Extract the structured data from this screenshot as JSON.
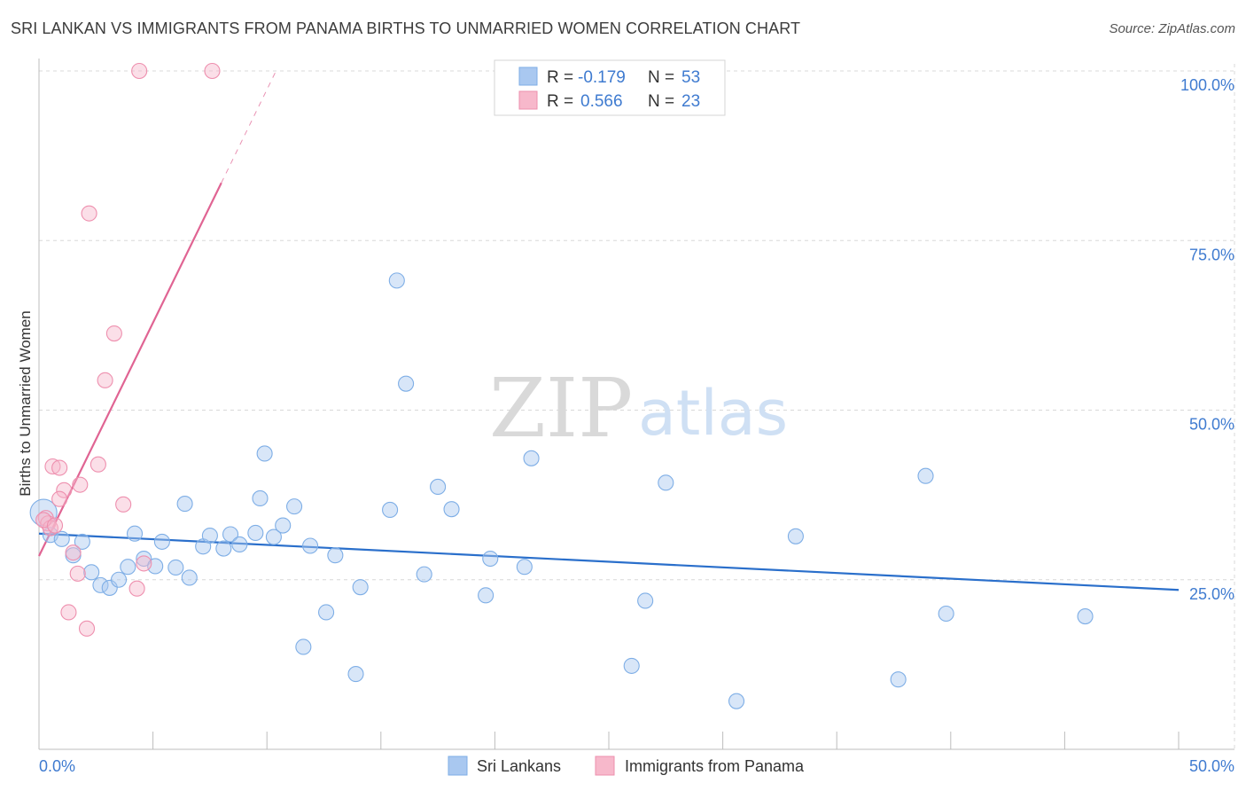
{
  "title": "SRI LANKAN VS IMMIGRANTS FROM PANAMA BIRTHS TO UNMARRIED WOMEN CORRELATION CHART",
  "source": "Source: ZipAtlas.com",
  "watermark": {
    "zip": "ZIP",
    "atlas": "atlas"
  },
  "legend": {
    "r_label": "R =",
    "n_label": "N =",
    "rows": [
      {
        "r": "-0.179",
        "n": "53",
        "color": "#a9c8f0"
      },
      {
        "r": "0.566",
        "n": "23",
        "color": "#f7b8cb"
      }
    ]
  },
  "chart_data": {
    "type": "scatter",
    "title": "SRI LANKAN VS IMMIGRANTS FROM PANAMA BIRTHS TO UNMARRIED WOMEN CORRELATION CHART",
    "xlabel": "",
    "ylabel": "Births to Unmarried Women",
    "xlim": [
      0,
      50
    ],
    "ylim": [
      0,
      105
    ],
    "x_tick_labels": [
      "0.0%",
      "50.0%"
    ],
    "y_ticks": [
      {
        "value": 25,
        "label": "25.0%"
      },
      {
        "value": 50,
        "label": "50.0%"
      },
      {
        "value": 75,
        "label": "75.0%"
      },
      {
        "value": 100,
        "label": "100.0%"
      }
    ],
    "series": [
      {
        "name": "Sri Lankans",
        "color": "#a9c8f0",
        "stroke": "#7eaee6",
        "line_color": "#2a6fcb",
        "trend": {
          "x0": 0,
          "y0": 31.8,
          "x1": 50,
          "y1": 23.5
        },
        "points": [
          {
            "x": 0.2,
            "y": 34.9,
            "big": true
          },
          {
            "x": 0.5,
            "y": 31.6
          },
          {
            "x": 1.0,
            "y": 31.0
          },
          {
            "x": 1.9,
            "y": 30.6
          },
          {
            "x": 1.5,
            "y": 28.6
          },
          {
            "x": 2.3,
            "y": 26.1
          },
          {
            "x": 2.7,
            "y": 24.2
          },
          {
            "x": 3.1,
            "y": 23.8
          },
          {
            "x": 3.5,
            "y": 25.0
          },
          {
            "x": 3.9,
            "y": 26.9
          },
          {
            "x": 4.2,
            "y": 31.8
          },
          {
            "x": 4.6,
            "y": 28.1
          },
          {
            "x": 5.1,
            "y": 27.0
          },
          {
            "x": 5.4,
            "y": 30.6
          },
          {
            "x": 6.0,
            "y": 26.8
          },
          {
            "x": 6.4,
            "y": 36.2
          },
          {
            "x": 6.6,
            "y": 25.3
          },
          {
            "x": 7.2,
            "y": 29.9
          },
          {
            "x": 7.5,
            "y": 31.5
          },
          {
            "x": 8.1,
            "y": 29.6
          },
          {
            "x": 8.4,
            "y": 31.7
          },
          {
            "x": 8.8,
            "y": 30.2
          },
          {
            "x": 9.5,
            "y": 31.9
          },
          {
            "x": 9.7,
            "y": 37.0
          },
          {
            "x": 9.9,
            "y": 43.6
          },
          {
            "x": 10.3,
            "y": 31.3
          },
          {
            "x": 10.7,
            "y": 33.0
          },
          {
            "x": 11.2,
            "y": 35.8
          },
          {
            "x": 11.6,
            "y": 15.1
          },
          {
            "x": 11.9,
            "y": 30.0
          },
          {
            "x": 12.6,
            "y": 20.2
          },
          {
            "x": 13.0,
            "y": 28.6
          },
          {
            "x": 13.9,
            "y": 11.1
          },
          {
            "x": 14.1,
            "y": 23.9
          },
          {
            "x": 15.4,
            "y": 35.3
          },
          {
            "x": 15.7,
            "y": 69.1
          },
          {
            "x": 16.1,
            "y": 53.9
          },
          {
            "x": 16.9,
            "y": 25.8
          },
          {
            "x": 17.5,
            "y": 38.7
          },
          {
            "x": 18.1,
            "y": 35.4
          },
          {
            "x": 19.6,
            "y": 22.7
          },
          {
            "x": 19.8,
            "y": 28.1
          },
          {
            "x": 21.3,
            "y": 26.9
          },
          {
            "x": 21.6,
            "y": 42.9
          },
          {
            "x": 26.0,
            "y": 12.3
          },
          {
            "x": 26.6,
            "y": 21.9
          },
          {
            "x": 27.5,
            "y": 39.3
          },
          {
            "x": 30.6,
            "y": 7.1
          },
          {
            "x": 33.2,
            "y": 31.4
          },
          {
            "x": 37.7,
            "y": 10.3
          },
          {
            "x": 38.9,
            "y": 40.3
          },
          {
            "x": 39.8,
            "y": 20.0
          },
          {
            "x": 45.9,
            "y": 19.6
          }
        ]
      },
      {
        "name": "Immigrants from Panama",
        "color": "#f7b8cb",
        "stroke": "#ee8fae",
        "line_color": "#e06493",
        "trend": {
          "x0": 0,
          "y0": 28.5,
          "x1": 8.0,
          "y1": 83.5
        },
        "trend_dashed": {
          "x0": 8.0,
          "y0": 83.5,
          "x1": 10.4,
          "y1": 100.0
        },
        "points": [
          {
            "x": 4.4,
            "y": 100.0
          },
          {
            "x": 7.6,
            "y": 100.0
          },
          {
            "x": 2.2,
            "y": 79.0
          },
          {
            "x": 3.3,
            "y": 61.3
          },
          {
            "x": 2.9,
            "y": 54.4
          },
          {
            "x": 0.6,
            "y": 41.7
          },
          {
            "x": 0.9,
            "y": 41.5
          },
          {
            "x": 2.6,
            "y": 42.0
          },
          {
            "x": 1.8,
            "y": 39.0
          },
          {
            "x": 1.1,
            "y": 38.2
          },
          {
            "x": 0.9,
            "y": 36.9
          },
          {
            "x": 3.7,
            "y": 36.1
          },
          {
            "x": 0.3,
            "y": 34.1
          },
          {
            "x": 0.4,
            "y": 33.3
          },
          {
            "x": 0.5,
            "y": 32.6
          },
          {
            "x": 1.5,
            "y": 29.0
          },
          {
            "x": 4.6,
            "y": 27.4
          },
          {
            "x": 1.7,
            "y": 25.9
          },
          {
            "x": 4.3,
            "y": 23.7
          },
          {
            "x": 1.3,
            "y": 20.2
          },
          {
            "x": 2.1,
            "y": 17.8
          },
          {
            "x": 0.2,
            "y": 33.8
          },
          {
            "x": 0.7,
            "y": 33.0
          }
        ]
      }
    ]
  }
}
